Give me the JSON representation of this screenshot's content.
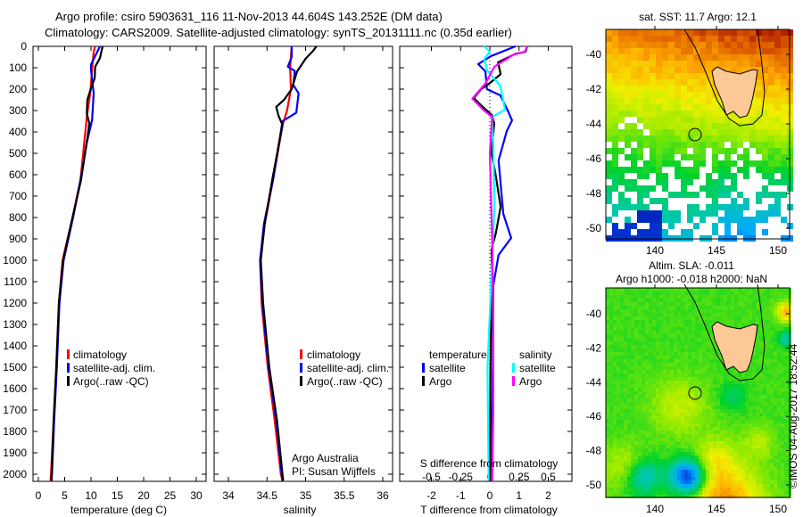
{
  "header": {
    "title_line1": "Argo profile: csiro 5903631_116 11-Nov-2013 44.604S 143.252E (DM data)",
    "title_line2": "Climatology: CARS2009. Satellite-adjusted climatology: synTS_20131111.nc (0.35d earlier)"
  },
  "colors": {
    "climatology": "#ff0000",
    "satellite": "#0000ff",
    "argo": "#000000",
    "sal_satellite": "#00ffff",
    "sal_argo": "#ff00ff",
    "land": "#fcc896"
  },
  "chart_data": [
    {
      "type": "line",
      "name": "temperature",
      "xlabel": "temperature (deg C)",
      "ylabel": "",
      "xlim": [
        -1,
        31
      ],
      "ylim": [
        2030,
        0
      ],
      "xticks": [
        "0",
        "5",
        "10",
        "15",
        "20",
        "25",
        "30"
      ],
      "xtick_values": [
        0,
        5,
        10,
        15,
        20,
        25,
        30
      ],
      "yticks": [
        "0",
        "100",
        "200",
        "300",
        "400",
        "500",
        "600",
        "700",
        "800",
        "900",
        "1000",
        "1100",
        "1200",
        "1300",
        "1400",
        "1500",
        "1600",
        "1700",
        "1800",
        "1900",
        "2000"
      ],
      "legend": [
        "climatology",
        "satellite-adj. clim.",
        "Argo(..raw -QC)"
      ],
      "series": [
        {
          "name": "climatology",
          "color": "#ff0000",
          "points": [
            [
              10.8,
              0
            ],
            [
              10.5,
              25
            ],
            [
              10.2,
              105
            ],
            [
              9.9,
              210
            ],
            [
              9.2,
              330
            ],
            [
              8.0,
              625
            ],
            [
              6.5,
              800
            ],
            [
              4.6,
              1000
            ],
            [
              3.9,
              1200
            ],
            [
              3.4,
              1500
            ],
            [
              2.9,
              1750
            ],
            [
              2.4,
              2000
            ],
            [
              2.3,
              2030
            ]
          ]
        },
        {
          "name": "satellite-adj. clim.",
          "color": "#0000ff",
          "points": [
            [
              11.7,
              0
            ],
            [
              10.9,
              40
            ],
            [
              10.0,
              85
            ],
            [
              10.0,
              110
            ],
            [
              10.5,
              220
            ],
            [
              10.2,
              345
            ],
            [
              9.2,
              450
            ],
            [
              8.0,
              625
            ],
            [
              6.6,
              800
            ],
            [
              4.8,
              1000
            ],
            [
              4.0,
              1200
            ],
            [
              3.5,
              1500
            ],
            [
              3.0,
              1750
            ],
            [
              2.6,
              2000
            ],
            [
              2.5,
              2030
            ]
          ]
        },
        {
          "name": "Argo(..raw -QC)",
          "color": "#000000",
          "points": [
            [
              12.2,
              0
            ],
            [
              11.7,
              55
            ],
            [
              10.8,
              95
            ],
            [
              10.7,
              150
            ],
            [
              10.2,
              180
            ],
            [
              9.3,
              250
            ],
            [
              9.2,
              315
            ],
            [
              9.7,
              360
            ],
            [
              9.3,
              430
            ],
            [
              8.1,
              625
            ],
            [
              6.5,
              800
            ],
            [
              4.7,
              1000
            ],
            [
              3.9,
              1200
            ],
            [
              3.4,
              1500
            ],
            [
              2.9,
              1750
            ],
            [
              2.5,
              2000
            ],
            [
              2.5,
              2030
            ]
          ]
        }
      ]
    },
    {
      "type": "line",
      "name": "salinity",
      "xlabel": "salinity",
      "xlim": [
        33.8,
        36.1
      ],
      "ylim": [
        2030,
        0
      ],
      "xticks": [
        "34",
        "34.5",
        "35",
        "35.5",
        "36"
      ],
      "xtick_values": [
        34,
        34.5,
        35,
        35.5,
        36
      ],
      "legend": [
        "climatology",
        "satellite-adj. clim.",
        "Argo(..raw -QC)"
      ],
      "annotation": [
        "Argo Australia",
        "PI: Susan Wijffels"
      ],
      "series": [
        {
          "name": "climatology",
          "color": "#ff0000",
          "points": [
            [
              34.82,
              0
            ],
            [
              34.8,
              100
            ],
            [
              34.81,
              200
            ],
            [
              34.76,
              300
            ],
            [
              34.7,
              370
            ],
            [
              34.58,
              620
            ],
            [
              34.47,
              830
            ],
            [
              34.41,
              1000
            ],
            [
              34.43,
              1200
            ],
            [
              34.51,
              1500
            ],
            [
              34.6,
              1750
            ],
            [
              34.68,
              2000
            ],
            [
              34.7,
              2030
            ]
          ]
        },
        {
          "name": "satellite-adj. clim.",
          "color": "#0000ff",
          "points": [
            [
              34.82,
              0
            ],
            [
              34.82,
              50
            ],
            [
              34.77,
              95
            ],
            [
              34.86,
              115
            ],
            [
              34.84,
              180
            ],
            [
              34.91,
              220
            ],
            [
              34.88,
              310
            ],
            [
              34.7,
              350
            ],
            [
              34.58,
              620
            ],
            [
              34.46,
              830
            ],
            [
              34.41,
              1000
            ],
            [
              34.44,
              1200
            ],
            [
              34.52,
              1500
            ],
            [
              34.62,
              1750
            ],
            [
              34.69,
              2000
            ],
            [
              34.7,
              2030
            ]
          ]
        },
        {
          "name": "Argo(..raw -QC)",
          "color": "#000000",
          "points": [
            [
              35.14,
              0
            ],
            [
              35.1,
              20
            ],
            [
              35.0,
              58
            ],
            [
              34.89,
              117
            ],
            [
              34.82,
              200
            ],
            [
              34.72,
              250
            ],
            [
              34.62,
              283
            ],
            [
              34.65,
              325
            ],
            [
              34.7,
              367
            ],
            [
              34.57,
              620
            ],
            [
              34.47,
              830
            ],
            [
              34.42,
              1000
            ],
            [
              34.45,
              1200
            ],
            [
              34.53,
              1500
            ],
            [
              34.63,
              1750
            ],
            [
              34.7,
              2000
            ],
            [
              34.71,
              2030
            ]
          ]
        }
      ]
    },
    {
      "type": "line",
      "name": "differences",
      "xlabel": "T difference from climatology",
      "xlabel2": "S difference from climatology",
      "xlim": [
        -3.0,
        2.85
      ],
      "ylim": [
        2030,
        0
      ],
      "xticks": [
        "-2",
        "-1",
        "0",
        "1",
        "2"
      ],
      "xtick_values": [
        -2,
        -1,
        0,
        1,
        2
      ],
      "xticks2": [
        "-0.5",
        "-0.25",
        "0",
        "0.25",
        "0.5"
      ],
      "xtick2_values": [
        -0.5,
        -0.25,
        0,
        0.25,
        0.5
      ],
      "legend_temperature": [
        "temperature",
        "satellite",
        "Argo"
      ],
      "legend_salinity": [
        "salinity",
        "satellite",
        "Argo"
      ],
      "series": [
        {
          "name": "temperature satellite",
          "axis": "T",
          "color": "#0000ff",
          "points": [
            [
              0.88,
              0
            ],
            [
              0.05,
              45
            ],
            [
              -0.4,
              83
            ],
            [
              -0.15,
              117
            ],
            [
              -0.1,
              200
            ],
            [
              0.36,
              229
            ],
            [
              0.6,
              296
            ],
            [
              0.76,
              346
            ],
            [
              0.58,
              396
            ],
            [
              0.3,
              533
            ],
            [
              0.46,
              783
            ],
            [
              0.73,
              896
            ],
            [
              0.3,
              975
            ],
            [
              0.12,
              1117
            ],
            [
              0.1,
              1500
            ],
            [
              0.05,
              2030
            ]
          ]
        },
        {
          "name": "temperature Argo",
          "axis": "T",
          "color": "#000000",
          "points": [
            [
              1.28,
              0
            ],
            [
              1.22,
              25
            ],
            [
              0.88,
              35
            ],
            [
              0.28,
              75
            ],
            [
              0.37,
              130
            ],
            [
              -0.03,
              175
            ],
            [
              -0.3,
              200
            ],
            [
              -0.55,
              242
            ],
            [
              -0.24,
              283
            ],
            [
              0.06,
              320
            ],
            [
              0.15,
              360
            ],
            [
              0.06,
              500
            ],
            [
              0.21,
              610
            ],
            [
              0.37,
              750
            ],
            [
              0.21,
              870
            ],
            [
              0.06,
              950
            ],
            [
              0.06,
              1117
            ],
            [
              0.02,
              1500
            ],
            [
              0.0,
              2030
            ]
          ]
        },
        {
          "name": "salinity satellite",
          "axis": "S",
          "color": "#00ffff",
          "points": [
            [
              -0.05,
              0
            ],
            [
              0.0,
              25
            ],
            [
              -0.05,
              60
            ],
            [
              -0.02,
              115
            ],
            [
              0.09,
              185
            ],
            [
              0.13,
              296
            ],
            [
              0.02,
              330
            ],
            [
              0.03,
              470
            ],
            [
              0.04,
              750
            ],
            [
              0.01,
              1117
            ],
            [
              -0.02,
              1500
            ],
            [
              -0.01,
              2030
            ]
          ]
        },
        {
          "name": "salinity Argo",
          "axis": "S",
          "color": "#ff00ff",
          "points": [
            [
              0.32,
              0
            ],
            [
              0.3,
              25
            ],
            [
              0.2,
              40
            ],
            [
              0.04,
              95
            ],
            [
              -0.04,
              175
            ],
            [
              -0.15,
              244
            ],
            [
              -0.05,
              300
            ],
            [
              0.02,
              330
            ],
            [
              0.0,
              500
            ],
            [
              0.02,
              900
            ],
            [
              0.03,
              1300
            ],
            [
              0.03,
              1700
            ],
            [
              0.02,
              2030
            ]
          ]
        }
      ]
    }
  ],
  "maps": {
    "sst": {
      "title": "sat. SST: 11.7 Argo: 12.1",
      "yticks": [
        "-40",
        "-42",
        "-44",
        "-46",
        "-48",
        "-50"
      ],
      "xticks": [
        "140",
        "145",
        "150"
      ]
    },
    "sla": {
      "title_line1": "Altim. SLA: -0.011",
      "title_line2": "Argo h1000: -0.018 h2000: NaN",
      "yticks": [
        "-40",
        "-42",
        "-44",
        "-46",
        "-48",
        "-50"
      ],
      "xticks": [
        "140",
        "145",
        "150"
      ]
    },
    "credit": "©IMOS 04-Aug-2017 18:52:44"
  }
}
